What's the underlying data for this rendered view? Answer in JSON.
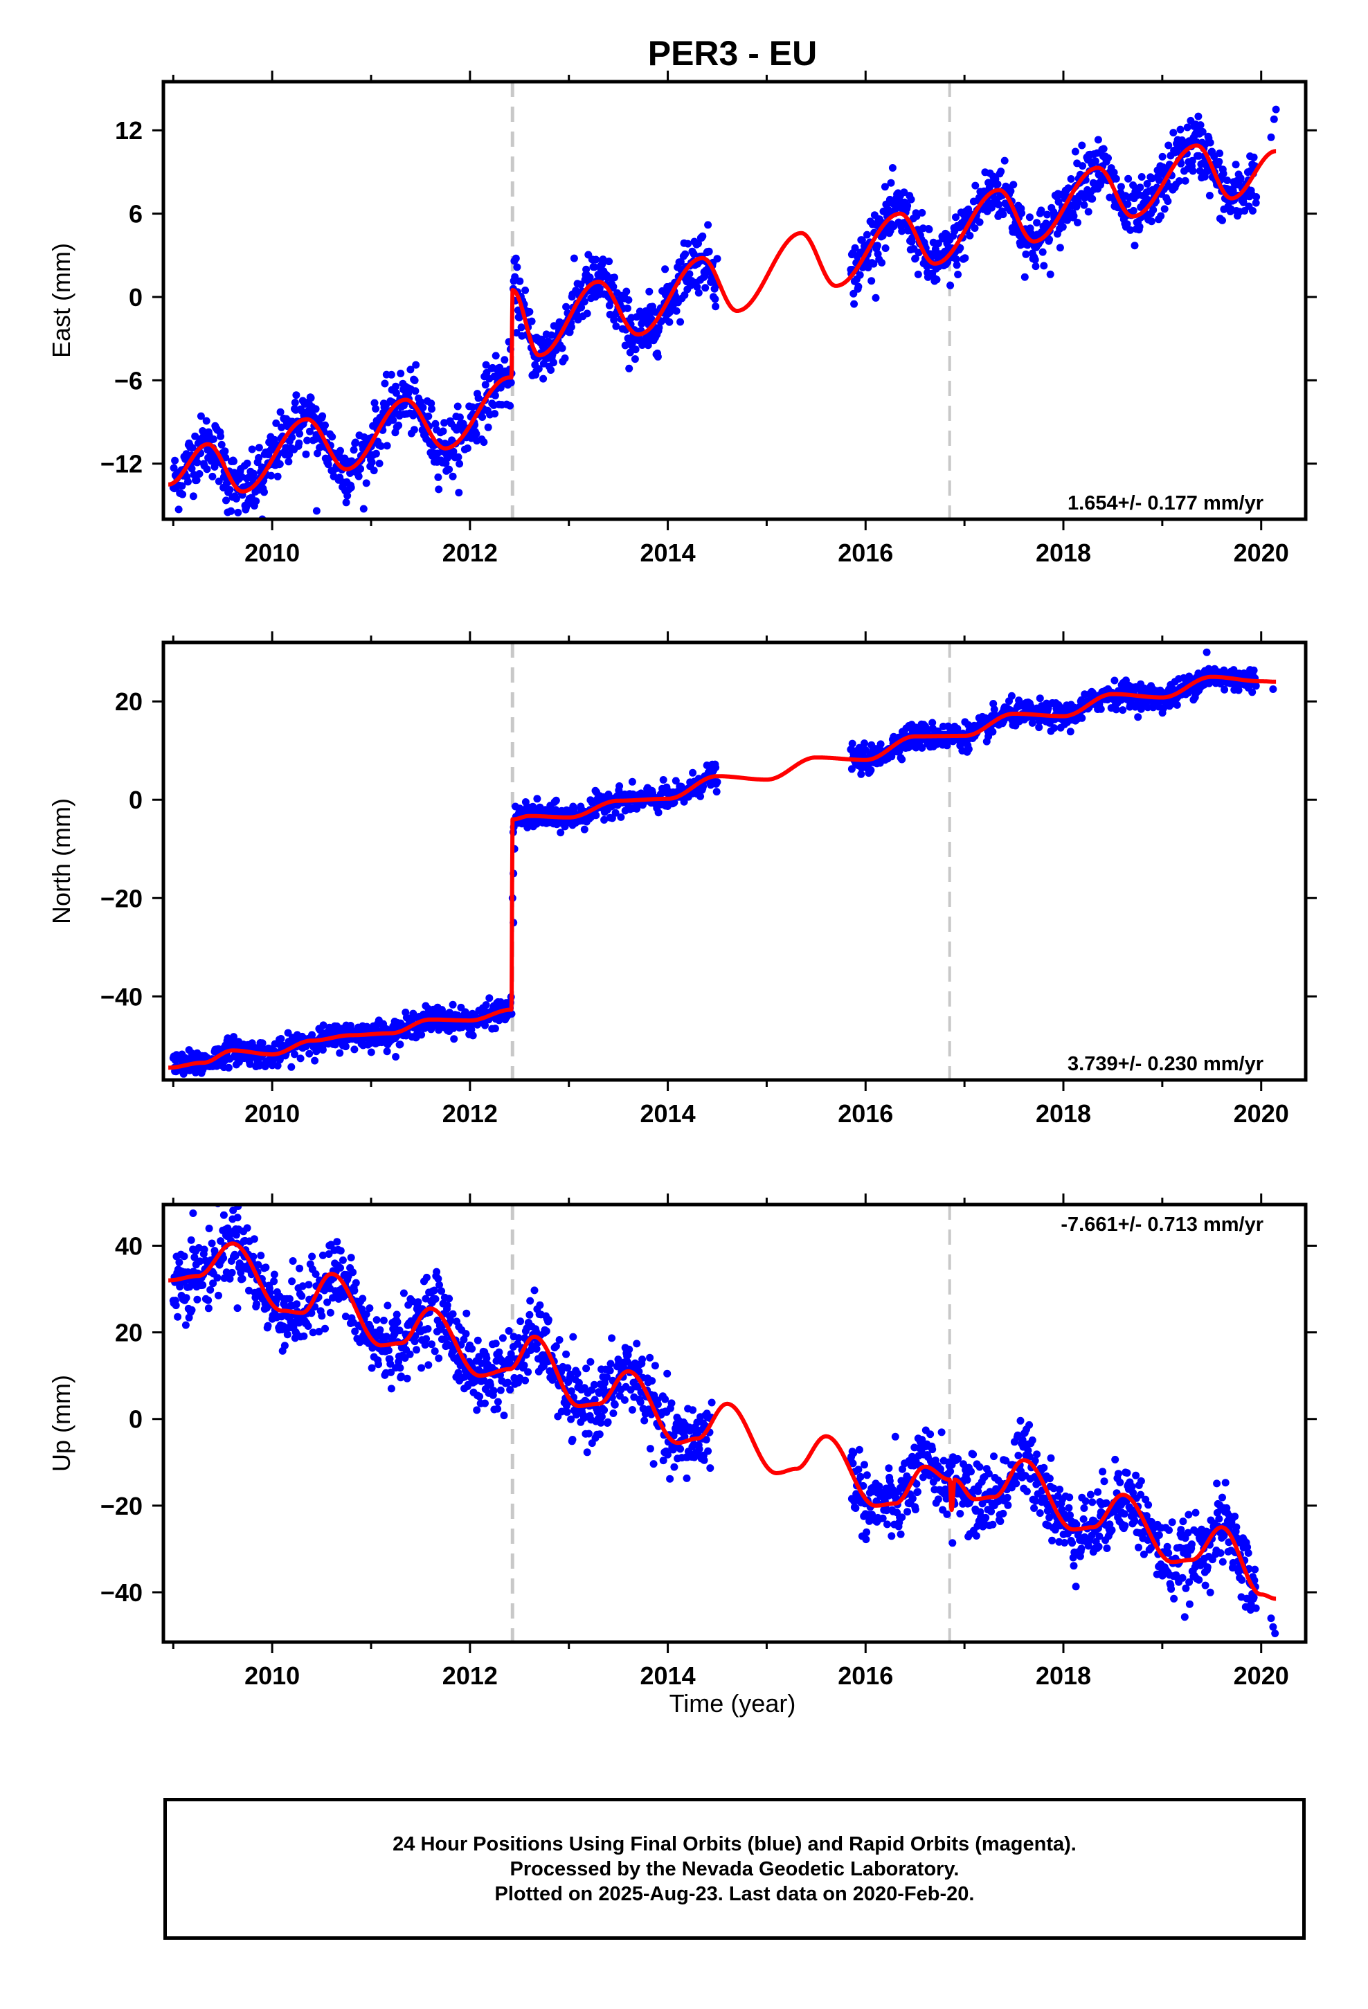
{
  "title": "PER3 - EU",
  "colors": {
    "data": "#0000ff",
    "model": "#ff0000",
    "event_line": "#c8c8c8",
    "frame": "#000000"
  },
  "x_axis": {
    "label": "Time (year)",
    "range": [
      2008.9,
      2020.45
    ],
    "ticks": [
      "2010",
      "2012",
      "2014",
      "2016",
      "2018",
      "2020"
    ]
  },
  "event_lines": [
    2012.43,
    2016.85
  ],
  "footer": {
    "line1": "24 Hour Positions Using Final Orbits (blue) and Rapid Orbits (magenta).",
    "line2": "Processed by the Nevada Geodetic Laboratory.",
    "line3": "Plotted on 2025-Aug-23. Last data on 2020-Feb-20."
  },
  "chart_data": [
    {
      "type": "scatter",
      "component": "East",
      "ylabel": "East (mm)",
      "ylim": [
        -16,
        15.5
      ],
      "yticks": [
        "−12",
        "−6",
        "0",
        "6",
        "12"
      ],
      "yticks_values": [
        -12,
        -6,
        0,
        6,
        12
      ],
      "rate_text": "1.654+/- 0.177 mm/yr",
      "rate_position": "bottom-right",
      "series": [
        {
          "name": "Final Orbits (blue)",
          "kind": "points",
          "color": "#0000ff",
          "segments": [
            [
              2009.0,
              2014.5
            ],
            [
              2015.85,
              2019.95
            ]
          ],
          "noise_mm": 1.1,
          "extra": [
            [
              2020.1,
              11.5
            ],
            [
              2020.13,
              12.8
            ],
            [
              2020.15,
              13.5
            ],
            [
              2019.95,
              7.2
            ],
            [
              2009.55,
              -15.5
            ],
            [
              2009.9,
              -16.0
            ],
            [
              2010.45,
              -15.4
            ]
          ]
        },
        {
          "name": "model",
          "kind": "line",
          "color": "#ff0000",
          "knots": [
            [
              2008.95,
              -13.5
            ],
            [
              2009.35,
              -10.6
            ],
            [
              2009.7,
              -14.0
            ],
            [
              2010.35,
              -8.8
            ],
            [
              2010.75,
              -12.4
            ],
            [
              2011.35,
              -7.4
            ],
            [
              2011.75,
              -10.9
            ],
            [
              2012.4,
              -5.8
            ],
            [
              2012.42,
              -5.8
            ],
            [
              2012.43,
              0.5
            ],
            [
              2012.7,
              -4.2
            ],
            [
              2013.3,
              1.1
            ],
            [
              2013.7,
              -2.7
            ],
            [
              2014.35,
              2.8
            ],
            [
              2014.7,
              -1.0
            ],
            [
              2015.35,
              4.6
            ],
            [
              2015.7,
              0.8
            ],
            [
              2016.35,
              6.0
            ],
            [
              2016.7,
              2.4
            ],
            [
              2017.35,
              7.7
            ],
            [
              2017.7,
              4.0
            ],
            [
              2018.35,
              9.3
            ],
            [
              2018.7,
              5.8
            ],
            [
              2019.35,
              10.9
            ],
            [
              2019.7,
              7.1
            ],
            [
              2020.15,
              10.5
            ]
          ]
        }
      ]
    },
    {
      "type": "scatter",
      "component": "North",
      "ylabel": "North (mm)",
      "ylim": [
        -57,
        32
      ],
      "yticks": [
        "−40",
        "−20",
        "0",
        "20"
      ],
      "yticks_values": [
        -40,
        -20,
        0,
        20
      ],
      "rate_text": "3.739+/- 0.230 mm/yr",
      "rate_position": "bottom-right",
      "series": [
        {
          "name": "Final Orbits (blue)",
          "kind": "points",
          "color": "#0000ff",
          "segments": [
            [
              2009.0,
              2014.5
            ],
            [
              2015.85,
              2019.95
            ]
          ],
          "noise_mm": 1.3,
          "extra": [
            [
              2012.43,
              -20
            ],
            [
              2012.44,
              -15
            ],
            [
              2012.45,
              -10
            ],
            [
              2012.44,
              -25
            ],
            [
              2019.45,
              30
            ],
            [
              2020.12,
              22.5
            ]
          ]
        },
        {
          "name": "model",
          "kind": "line",
          "color": "#ff0000",
          "knots": [
            [
              2008.95,
              -54.5
            ],
            [
              2009.3,
              -53.5
            ],
            [
              2009.6,
              -51.0
            ],
            [
              2010.0,
              -51.8
            ],
            [
              2010.4,
              -49.0
            ],
            [
              2010.8,
              -47.9
            ],
            [
              2011.2,
              -47.5
            ],
            [
              2011.6,
              -44.7
            ],
            [
              2012.0,
              -44.9
            ],
            [
              2012.42,
              -42.7
            ],
            [
              2012.43,
              -4.0
            ],
            [
              2012.6,
              -3.3
            ],
            [
              2013.0,
              -3.6
            ],
            [
              2013.5,
              -0.2
            ],
            [
              2014.0,
              0.2
            ],
            [
              2014.5,
              4.8
            ],
            [
              2015.0,
              4.1
            ],
            [
              2015.5,
              8.6
            ],
            [
              2016.0,
              8.1
            ],
            [
              2016.5,
              12.9
            ],
            [
              2017.0,
              13.0
            ],
            [
              2017.5,
              17.5
            ],
            [
              2018.0,
              17.0
            ],
            [
              2018.5,
              21.5
            ],
            [
              2019.0,
              20.8
            ],
            [
              2019.5,
              25.0
            ],
            [
              2020.0,
              24.1
            ],
            [
              2020.15,
              24.0
            ]
          ]
        }
      ]
    },
    {
      "type": "scatter",
      "component": "Up",
      "ylabel": "Up (mm)",
      "ylim": [
        -51.5,
        49.5
      ],
      "yticks": [
        "−40",
        "−20",
        "0",
        "20",
        "40"
      ],
      "yticks_values": [
        -40,
        -20,
        0,
        20,
        40
      ],
      "rate_text": "-7.661+/- 0.713 mm/yr",
      "rate_position": "top-right",
      "series": [
        {
          "name": "Final Orbits (blue)",
          "kind": "points",
          "color": "#0000ff",
          "segments": [
            [
              2009.0,
              2014.45
            ],
            [
              2015.85,
              2019.95
            ]
          ],
          "noise_mm": 4.3,
          "extra": [
            [
              2020.1,
              -46
            ],
            [
              2020.12,
              -48
            ],
            [
              2020.14,
              -49.5
            ],
            [
              2009.2,
              47.5
            ],
            [
              2009.65,
              46.5
            ]
          ]
        },
        {
          "name": "model",
          "kind": "line",
          "color": "#ff0000",
          "knots": [
            [
              2008.95,
              32
            ],
            [
              2009.25,
              33
            ],
            [
              2009.6,
              40.5
            ],
            [
              2010.1,
              25
            ],
            [
              2010.3,
              24.5
            ],
            [
              2010.6,
              33.5
            ],
            [
              2011.1,
              17
            ],
            [
              2011.3,
              17.5
            ],
            [
              2011.6,
              25.5
            ],
            [
              2012.1,
              10
            ],
            [
              2012.4,
              11.5
            ],
            [
              2012.65,
              19
            ],
            [
              2013.1,
              3
            ],
            [
              2013.3,
              3.5
            ],
            [
              2013.6,
              11
            ],
            [
              2014.1,
              -5.5
            ],
            [
              2014.3,
              -4.5
            ],
            [
              2014.6,
              3.5
            ],
            [
              2015.1,
              -12.5
            ],
            [
              2015.3,
              -11.5
            ],
            [
              2015.6,
              -4
            ],
            [
              2016.1,
              -20
            ],
            [
              2016.3,
              -19.5
            ],
            [
              2016.6,
              -11
            ],
            [
              2016.85,
              -14
            ],
            [
              2016.87,
              -21
            ],
            [
              2016.9,
              -14
            ],
            [
              2017.1,
              -18.5
            ],
            [
              2017.3,
              -18
            ],
            [
              2017.6,
              -9.5
            ],
            [
              2018.1,
              -25.5
            ],
            [
              2018.3,
              -25
            ],
            [
              2018.6,
              -17.5
            ],
            [
              2019.1,
              -33
            ],
            [
              2019.3,
              -32.5
            ],
            [
              2019.6,
              -25
            ],
            [
              2020.0,
              -40.5
            ],
            [
              2020.15,
              -41.5
            ]
          ]
        }
      ]
    }
  ]
}
